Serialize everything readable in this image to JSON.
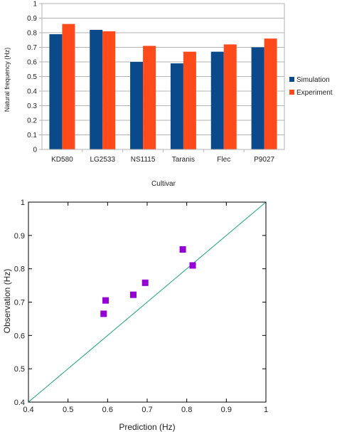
{
  "chart_data": [
    {
      "type": "bar",
      "title": "",
      "xlabel": "Cultivar",
      "ylabel": "Natural frequency (Hz)",
      "ylim": [
        0,
        1
      ],
      "yticks": [
        "0",
        "0.1",
        "0.2",
        "0.3",
        "0.4",
        "0.5",
        "0.6",
        "0.7",
        "0.8",
        "0.9",
        "1"
      ],
      "categories": [
        "KD580",
        "LG2533",
        "NS1115",
        "Taranis",
        "Flec",
        "P9027"
      ],
      "grid": true,
      "legend_position": "right",
      "series": [
        {
          "name": "Simulation",
          "color": "#0a4a8a",
          "values": [
            0.79,
            0.82,
            0.6,
            0.59,
            0.67,
            0.7
          ]
        },
        {
          "name": "Experiment",
          "color": "#ff4a1c",
          "values": [
            0.86,
            0.81,
            0.71,
            0.67,
            0.72,
            0.76
          ]
        }
      ]
    },
    {
      "type": "scatter",
      "title": "",
      "xlabel": "Prediction (Hz)",
      "ylabel": "Observation (Hz)",
      "xlim": [
        0.4,
        1
      ],
      "ylim": [
        0.4,
        1
      ],
      "xticks": [
        "0.4",
        "0.5",
        "0.6",
        "0.7",
        "0.8",
        "0.9",
        "1"
      ],
      "yticks": [
        "0.4",
        "0.5",
        "0.6",
        "0.7",
        "0.8",
        "0.9",
        "1"
      ],
      "grid": false,
      "marker_color": "#9400d3",
      "line_color": "#1aa37a",
      "reference_line": [
        [
          0.4,
          0.4
        ],
        [
          1,
          1
        ]
      ],
      "points": [
        {
          "x": 0.59,
          "y": 0.665
        },
        {
          "x": 0.595,
          "y": 0.705
        },
        {
          "x": 0.665,
          "y": 0.722
        },
        {
          "x": 0.695,
          "y": 0.758
        },
        {
          "x": 0.79,
          "y": 0.858
        },
        {
          "x": 0.815,
          "y": 0.81
        }
      ]
    }
  ]
}
